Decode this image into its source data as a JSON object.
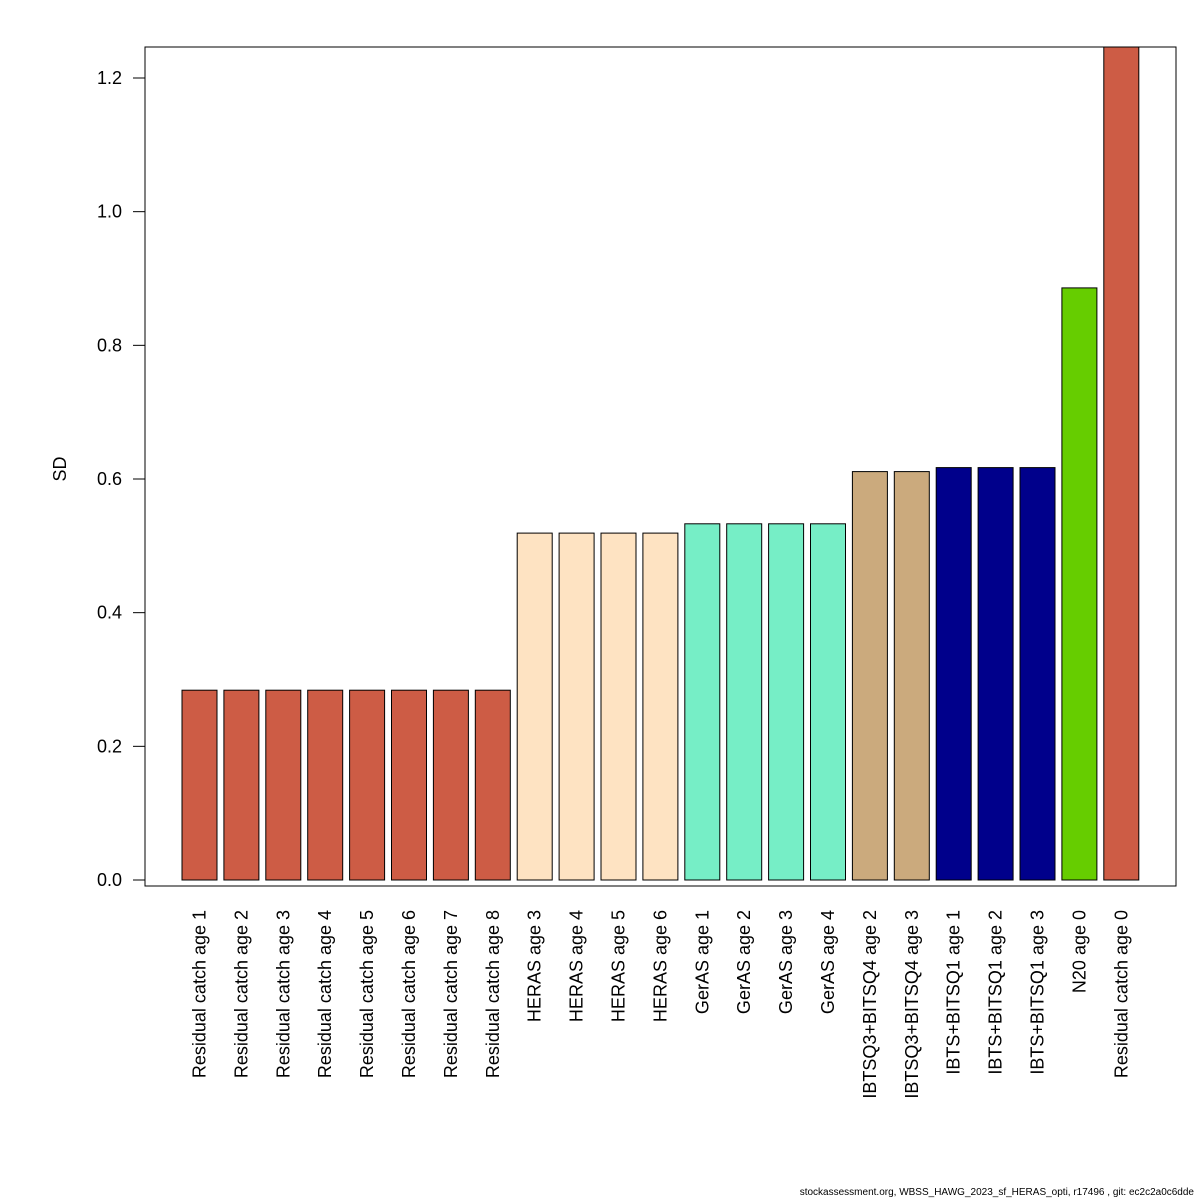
{
  "chart_data": {
    "type": "bar",
    "ylabel": "SD",
    "xlabel": "",
    "ylim": [
      0,
      1.2475
    ],
    "yticks": [
      0.0,
      0.2,
      0.4,
      0.6,
      0.8,
      1.0,
      1.2
    ],
    "ytick_labels": [
      "0.0",
      "0.2",
      "0.4",
      "0.6",
      "0.8",
      "1.0",
      "1.2"
    ],
    "grid": false,
    "legend": "none",
    "categories": [
      "Residual catch age 1",
      "Residual catch age 2",
      "Residual catch age 3",
      "Residual catch age 4",
      "Residual catch age 5",
      "Residual catch age 6",
      "Residual catch age 7",
      "Residual catch age 8",
      "HERAS age 3",
      "HERAS age 4",
      "HERAS age 5",
      "HERAS age 6",
      "GerAS age 1",
      "GerAS age 2",
      "GerAS age 3",
      "GerAS age 4",
      "IBTSQ3+BITSQ4 age 2",
      "IBTSQ3+BITSQ4 age 3",
      "IBTS+BITSQ1 age 1",
      "IBTS+BITSQ1 age 2",
      "IBTS+BITSQ1 age 3",
      "N20 age 0",
      "Residual catch age 0"
    ],
    "values": [
      0.284,
      0.284,
      0.284,
      0.284,
      0.284,
      0.284,
      0.284,
      0.284,
      0.519,
      0.519,
      0.519,
      0.519,
      0.533,
      0.533,
      0.533,
      0.533,
      0.611,
      0.611,
      0.617,
      0.617,
      0.617,
      0.886,
      1.26
    ],
    "colors": [
      "#cd5c45",
      "#cd5c45",
      "#cd5c45",
      "#cd5c45",
      "#cd5c45",
      "#cd5c45",
      "#cd5c45",
      "#cd5c45",
      "#fee3c2",
      "#fee3c2",
      "#fee3c2",
      "#fee3c2",
      "#76eec6",
      "#76eec6",
      "#76eec6",
      "#76eec6",
      "#cbaa7d",
      "#cbaa7d",
      "#00008b",
      "#00008b",
      "#00008b",
      "#66cd00",
      "#cd5c45"
    ]
  },
  "footer": "stockassessment.org, WBSS_HAWG_2023_sf_HERAS_opti, r17496 , git: ec2c2a0c6dde"
}
